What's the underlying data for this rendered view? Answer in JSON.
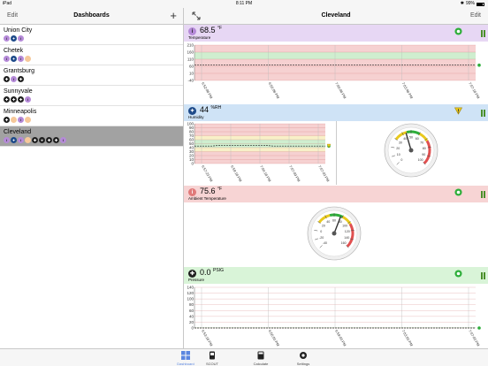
{
  "status_bar": {
    "carrier": "iPad",
    "time": "8:11 PM",
    "battery": "99%"
  },
  "sidebar": {
    "edit_label": "Edit",
    "title": "Dashboards",
    "add_label": "+",
    "dashboards": [
      {
        "name": "Union City",
        "icons": [
          "info",
          "droplet",
          "info"
        ]
      },
      {
        "name": "Chetek",
        "icons": [
          "info",
          "droplet",
          "info",
          "empty"
        ]
      },
      {
        "name": "Grantsburg",
        "icons": [
          "fan",
          "info",
          "fan"
        ]
      },
      {
        "name": "Sunnyvale",
        "icons": [
          "fan",
          "fan",
          "fan",
          "info"
        ]
      },
      {
        "name": "Minneapolis",
        "icons": [
          "fan",
          "empty",
          "info",
          "empty"
        ]
      },
      {
        "name": "Cleveland",
        "icons": [
          "info",
          "droplet",
          "info",
          "empty",
          "fan",
          "heart",
          "fan",
          "fan",
          "info"
        ],
        "selected": true
      }
    ]
  },
  "detail": {
    "title": "Cleveland",
    "edit_label": "Edit",
    "resize_icon": "resize-icon"
  },
  "colors": {
    "green": "#2eae3a",
    "yellow": "#e9c91d",
    "red": "#e05050",
    "purple_header": "#e7d7f4",
    "blue_header": "#cfe3f6",
    "red_header": "#f7d4d4",
    "green_header": "#d9f4d8"
  },
  "panels": [
    {
      "id": "temperature",
      "value": "68.5",
      "unit": "°F",
      "name": "Temperature",
      "status": "ok",
      "chart_data": {
        "type": "line",
        "y_ticks": [
          "210",
          "160",
          "110",
          "60",
          "10",
          "-40"
        ],
        "x_ticks": [
          "6:52:08 PM",
          "6:56:08 PM",
          "7:00:08 PM",
          "7:03:48 PM",
          "7:07:18 PM"
        ],
        "ylim": [
          -40,
          210
        ],
        "series": [
          {
            "values": [
              68,
              68,
              68,
              68,
              68
            ]
          }
        ]
      }
    },
    {
      "id": "humidity",
      "value": "44",
      "unit": "%RH",
      "name": "Humidity",
      "status": "warning",
      "chart_data": {
        "type": "line",
        "y_ticks": [
          "100",
          "90",
          "80",
          "70",
          "60",
          "50",
          "40",
          "30",
          "20",
          "10",
          "0"
        ],
        "x_ticks": [
          "6:57:23 PM",
          "6:59:18 PM",
          "7:04:18 PM",
          "7:07:09 PM",
          "7:07:03 PM"
        ],
        "ylim": [
          0,
          100
        ],
        "series": [
          {
            "values": [
              44,
              44,
              44,
              46,
              46,
              46,
              46,
              46,
              46,
              44,
              44,
              44,
              44,
              44,
              44,
              44
            ]
          }
        ]
      },
      "gauge": {
        "ticks": [
          "0",
          "10",
          "20",
          "30",
          "40",
          "50",
          "60",
          "70",
          "80",
          "90",
          "100"
        ],
        "value": 44
      }
    },
    {
      "id": "ambient",
      "value": "75.6",
      "unit": "°F",
      "name": "Ambient Temperature",
      "status": "ok",
      "gauge": {
        "ticks": [
          "-40",
          "-20",
          "0",
          "20",
          "40",
          "60",
          "80",
          "100",
          "120",
          "140",
          "160"
        ],
        "value": 75.6
      }
    },
    {
      "id": "pressure",
      "value": "0.0",
      "unit": "PSIG",
      "name": "Pressure",
      "status": "ok",
      "chart_data": {
        "type": "line",
        "y_ticks": [
          "140",
          "120",
          "100",
          "80",
          "60",
          "40",
          "20",
          "0"
        ],
        "x_ticks": [
          "6:53:18 PM",
          "6:56:03 PM",
          "6:59:03 PM",
          "7:03:03 PM",
          "7:07:03 PM"
        ],
        "ylim": [
          0,
          140
        ],
        "series": [
          {
            "values": [
              0,
              0,
              0,
              0,
              0
            ]
          }
        ]
      }
    }
  ],
  "tabs": [
    {
      "label": "Dashboard",
      "icon": "grid-icon",
      "active": true
    },
    {
      "label": "SCOUT",
      "icon": "scout-icon"
    },
    {
      "label": "Calculate",
      "icon": "calculator-icon"
    },
    {
      "label": "Settings",
      "icon": "gear-icon"
    }
  ]
}
